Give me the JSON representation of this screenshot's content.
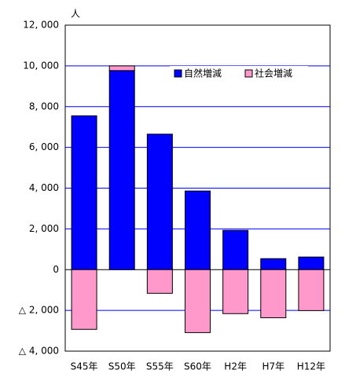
{
  "chart_data": {
    "type": "bar",
    "stacked": true,
    "y_unit_label": "人",
    "categories": [
      "S45年",
      "S50年",
      "S55年",
      "S60年",
      "H2年",
      "H7年",
      "H12年"
    ],
    "series": [
      {
        "name": "自然増減",
        "color": "#0000ff",
        "values": [
          7550,
          9770,
          6650,
          3860,
          1930,
          540,
          620
        ]
      },
      {
        "name": "社会増減",
        "color": "#ff99cc",
        "values": [
          -2930,
          230,
          -1160,
          -3090,
          -2160,
          -2360,
          -2010
        ]
      }
    ],
    "ylim": [
      -4000,
      12000
    ],
    "yticks": [
      {
        "value": -4000,
        "label": "△ 4, 000"
      },
      {
        "value": -2000,
        "label": "△ 2, 000"
      },
      0,
      {
        "value": 2000,
        "label": "2, 000"
      },
      {
        "value": 4000,
        "label": "4, 000"
      },
      {
        "value": 6000,
        "label": "6, 000"
      },
      {
        "value": 8000,
        "label": "8, 000"
      },
      {
        "value": 10000,
        "label": "10, 000"
      },
      {
        "value": 12000,
        "label": "12, 000"
      }
    ],
    "grid": true,
    "legend": "upper right"
  }
}
